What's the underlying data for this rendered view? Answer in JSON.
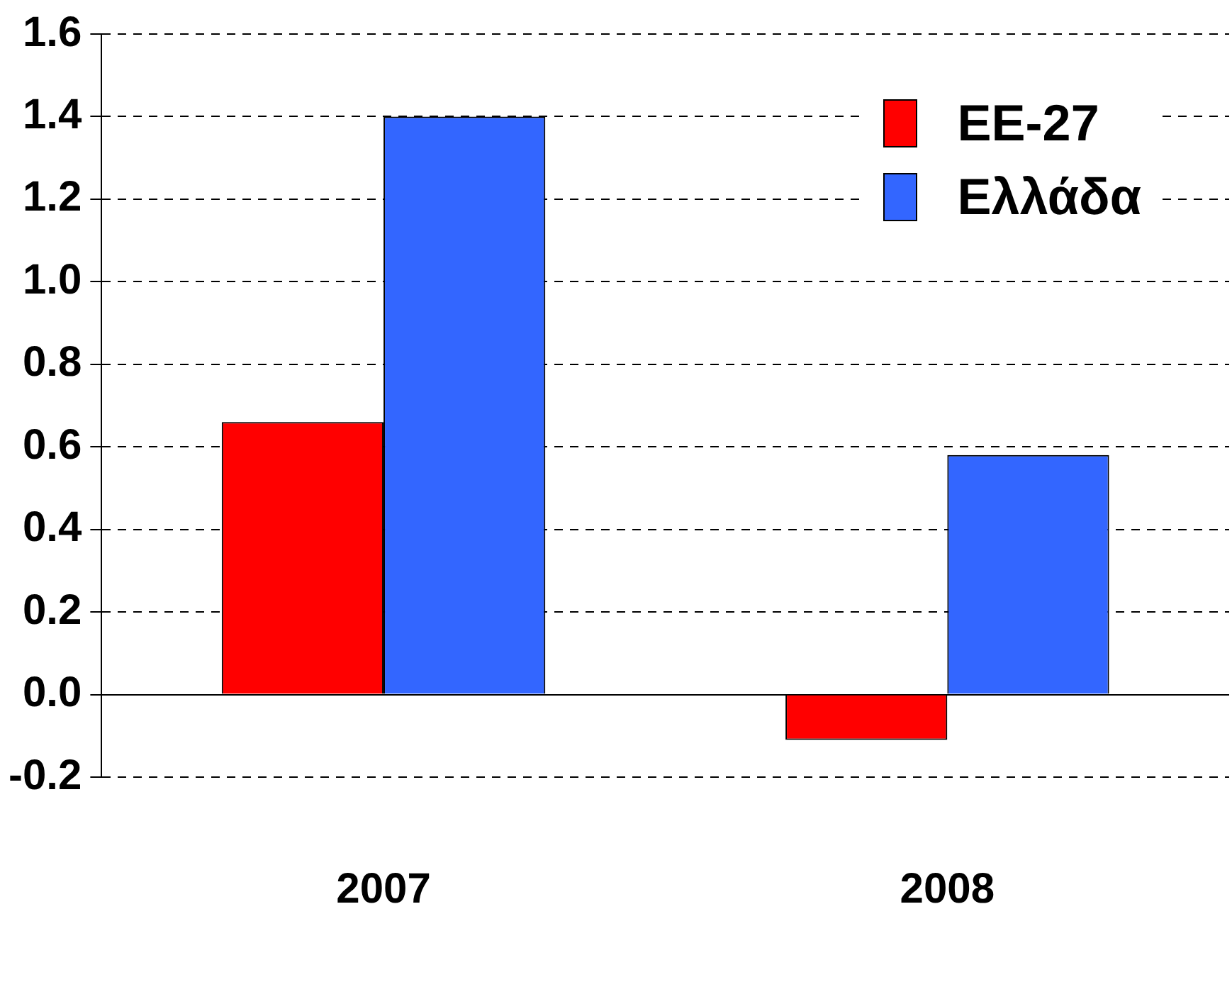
{
  "chart_data": {
    "type": "bar",
    "categories": [
      "2007",
      "2008"
    ],
    "series": [
      {
        "name": "ΕΕ-27",
        "color": "#ff0000",
        "values": [
          0.66,
          -0.11
        ]
      },
      {
        "name": "Ελλάδα",
        "color": "#3366ff",
        "values": [
          1.4,
          0.58
        ]
      }
    ],
    "ylim": [
      -0.2,
      1.6
    ],
    "yticks": [
      {
        "value": -0.2,
        "label": "-0.2"
      },
      {
        "value": 0,
        "label": "0.0"
      },
      {
        "value": 0.2,
        "label": "0.2"
      },
      {
        "value": 0.4,
        "label": "0.4"
      },
      {
        "value": 0.6,
        "label": "0.6"
      },
      {
        "value": 0.8,
        "label": "0.8"
      },
      {
        "value": 1,
        "label": "1.0"
      },
      {
        "value": 1.2,
        "label": "1.2"
      },
      {
        "value": 1.4,
        "label": "1.4"
      },
      {
        "value": 1.6,
        "label": "1.6"
      }
    ],
    "grid": "y",
    "legend": "top right"
  }
}
